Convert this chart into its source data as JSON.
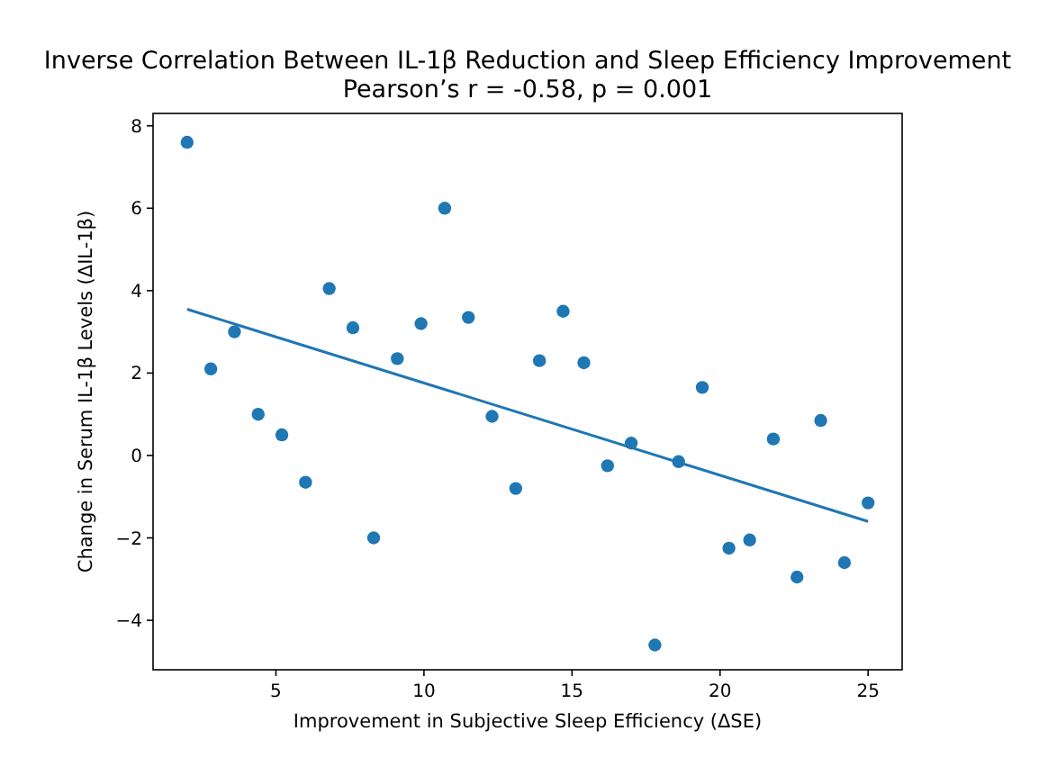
{
  "chart_data": {
    "type": "scatter",
    "title": "Inverse Correlation Between IL-1β Reduction and Sleep Efficiency Improvement",
    "subtitle": "Pearson’s r = -0.58, p = 0.001",
    "xlabel": "Improvement in Subjective Sleep Efficiency (ΔSE)",
    "ylabel": "Change in Serum IL-1β Levels (ΔIL-1β)",
    "xlim": [
      0.85,
      26.15
    ],
    "ylim": [
      -5.2,
      8.3
    ],
    "xticks": [
      5,
      10,
      15,
      20,
      25
    ],
    "yticks": [
      -4,
      -2,
      0,
      2,
      4,
      6,
      8
    ],
    "grid": false,
    "marker": "circle",
    "series": [
      {
        "color": "#1f77b4",
        "x": [
          2.0,
          2.8,
          3.6,
          4.4,
          5.2,
          6.0,
          6.8,
          7.6,
          8.3,
          9.1,
          9.9,
          10.7,
          11.5,
          12.3,
          13.1,
          13.9,
          14.7,
          15.4,
          16.2,
          17.0,
          17.8,
          18.6,
          19.4,
          20.3,
          21.0,
          21.8,
          22.6,
          23.4,
          24.2,
          25.0
        ],
        "values": [
          7.6,
          2.1,
          3.0,
          1.0,
          0.5,
          -0.65,
          4.05,
          3.1,
          -2.0,
          2.35,
          3.2,
          6.0,
          3.35,
          0.95,
          -0.8,
          2.3,
          3.5,
          2.25,
          -0.25,
          0.3,
          -4.6,
          -0.15,
          1.65,
          -2.25,
          -2.05,
          0.4,
          -2.95,
          0.85,
          -2.6,
          -1.15
        ]
      },
      {
        "type": "line",
        "color": "#1f77b4",
        "marker": "none",
        "line_style": "solid",
        "x": [
          2.0,
          25.0
        ],
        "values": [
          3.55,
          -1.6
        ]
      }
    ]
  }
}
